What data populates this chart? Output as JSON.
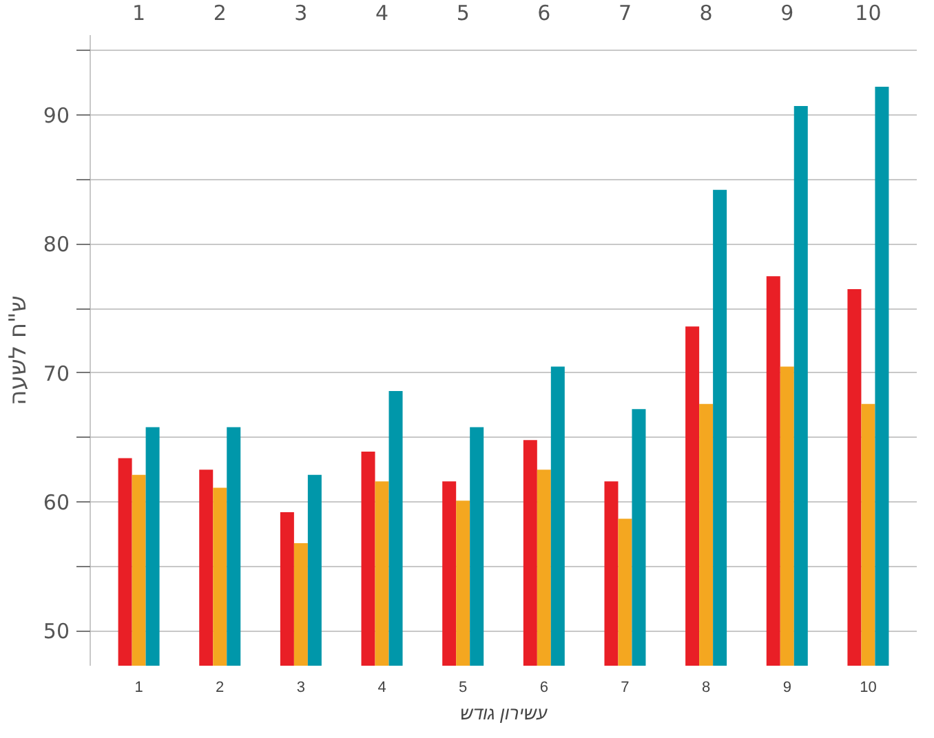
{
  "chart_data": {
    "type": "bar",
    "xlabel": "עשירון גודש",
    "ylabel": "ש\"ח לשעה",
    "categories": [
      "1",
      "2",
      "3",
      "4",
      "5",
      "6",
      "7",
      "8",
      "9",
      "10"
    ],
    "series": [
      {
        "color": "#e91f26",
        "values": [
          63.4,
          62.5,
          59.2,
          63.9,
          61.6,
          64.8,
          61.6,
          73.6,
          77.5,
          76.5
        ]
      },
      {
        "color": "#f4a720",
        "values": [
          62.1,
          61.1,
          56.8,
          61.6,
          60.1,
          62.5,
          58.7,
          67.6,
          70.5,
          67.6
        ]
      },
      {
        "color": "#0097aa",
        "values": [
          65.8,
          65.8,
          62.1,
          68.6,
          65.8,
          70.5,
          67.2,
          84.2,
          90.7,
          92.2
        ]
      }
    ],
    "ylim": [
      47.3,
      96.2
    ],
    "yticks": [
      50,
      {
        "value": 55,
        "label": null
      },
      60,
      {
        "value": 65,
        "label": null
      },
      70,
      {
        "value": 75,
        "label": null
      },
      80,
      {
        "value": 85,
        "label": null
      },
      90,
      {
        "value": 95,
        "label": null
      }
    ],
    "grid": "y"
  }
}
